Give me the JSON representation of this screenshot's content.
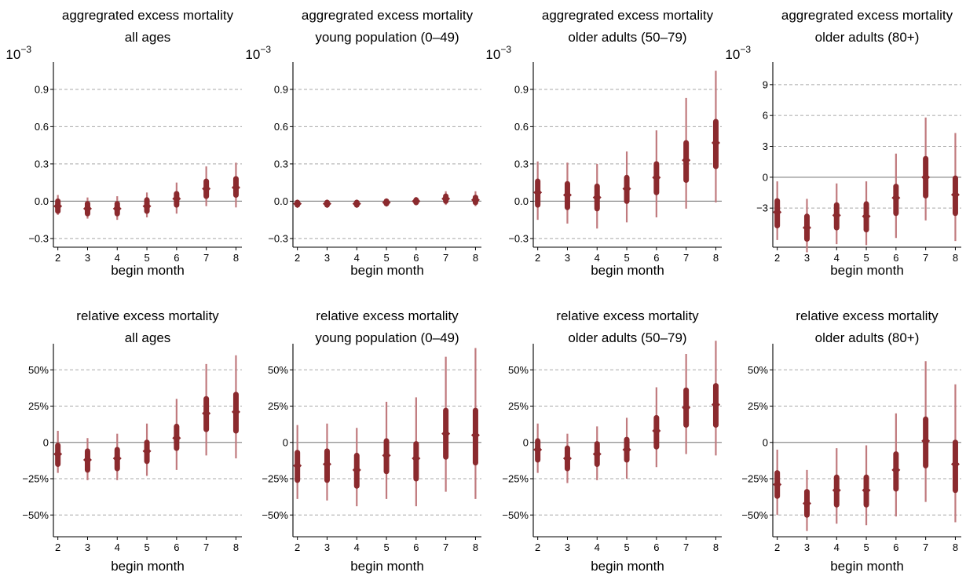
{
  "figure": {
    "xlabel": "begin month",
    "point_color": "#8b2a2e",
    "interval_color": "#c07a7e"
  },
  "chart_data": [
    {
      "type": "scatter",
      "title": [
        "aggregrated excess mortality",
        "all ages"
      ],
      "xlabel": "begin month",
      "ylabel": "",
      "multiplier": "10",
      "multiplier_exp": "−3",
      "x": [
        2,
        3,
        4,
        5,
        6,
        7,
        8
      ],
      "xlim": [
        1.85,
        8.2
      ],
      "ylim": [
        -0.37,
        1.12
      ],
      "yticks": [
        -0.3,
        0.0,
        0.3,
        0.6,
        0.9
      ],
      "yticklabels": [
        "−0.3",
        "0.0",
        "0.3",
        "0.6",
        "0.9"
      ],
      "estimate": [
        -0.04,
        -0.06,
        -0.06,
        -0.04,
        0.02,
        0.1,
        0.11
      ],
      "inner": [
        [
          -0.08,
          0.0
        ],
        [
          -0.1,
          -0.02
        ],
        [
          -0.1,
          -0.02
        ],
        [
          -0.08,
          0.01
        ],
        [
          -0.03,
          0.06
        ],
        [
          0.04,
          0.16
        ],
        [
          0.05,
          0.18
        ]
      ],
      "outer": [
        [
          -0.11,
          0.05
        ],
        [
          -0.14,
          0.03
        ],
        [
          -0.15,
          0.04
        ],
        [
          -0.13,
          0.07
        ],
        [
          -0.1,
          0.15
        ],
        [
          -0.04,
          0.28
        ],
        [
          -0.05,
          0.31
        ]
      ]
    },
    {
      "type": "scatter",
      "title": [
        "aggregrated excess mortality",
        "young population (0–49)"
      ],
      "xlabel": "begin month",
      "ylabel": "",
      "multiplier": "10",
      "multiplier_exp": "−3",
      "x": [
        2,
        3,
        4,
        5,
        6,
        7,
        8
      ],
      "xlim": [
        1.85,
        8.2
      ],
      "ylim": [
        -0.37,
        1.12
      ],
      "yticks": [
        -0.3,
        0.0,
        0.3,
        0.6,
        0.9
      ],
      "yticklabels": [
        "−0.3",
        "0.0",
        "0.3",
        "0.6",
        "0.9"
      ],
      "estimate": [
        -0.02,
        -0.02,
        -0.02,
        -0.01,
        0.0,
        0.02,
        0.01
      ],
      "inner": [
        [
          -0.03,
          -0.01
        ],
        [
          -0.03,
          -0.01
        ],
        [
          -0.03,
          -0.01
        ],
        [
          -0.02,
          0.0
        ],
        [
          -0.01,
          0.01
        ],
        [
          0.0,
          0.04
        ],
        [
          -0.01,
          0.03
        ]
      ],
      "outer": [
        [
          -0.04,
          0.0
        ],
        [
          -0.04,
          0.0
        ],
        [
          -0.04,
          0.0
        ],
        [
          -0.03,
          0.02
        ],
        [
          -0.03,
          0.03
        ],
        [
          -0.03,
          0.08
        ],
        [
          -0.04,
          0.08
        ]
      ]
    },
    {
      "type": "scatter",
      "title": [
        "aggregrated excess mortality",
        "older adults (50–79)"
      ],
      "xlabel": "begin month",
      "ylabel": "",
      "multiplier": "10",
      "multiplier_exp": "−3",
      "x": [
        2,
        3,
        4,
        5,
        6,
        7,
        8
      ],
      "xlim": [
        1.85,
        8.2
      ],
      "ylim": [
        -0.37,
        1.12
      ],
      "yticks": [
        -0.3,
        0.0,
        0.3,
        0.6,
        0.9
      ],
      "yticklabels": [
        "−0.3",
        "0.0",
        "0.3",
        "0.6",
        "0.9"
      ],
      "estimate": [
        0.07,
        0.05,
        0.03,
        0.1,
        0.19,
        0.33,
        0.47
      ],
      "inner": [
        [
          -0.03,
          0.16
        ],
        [
          -0.05,
          0.14
        ],
        [
          -0.06,
          0.12
        ],
        [
          0.0,
          0.19
        ],
        [
          0.07,
          0.3
        ],
        [
          0.17,
          0.47
        ],
        [
          0.28,
          0.64
        ]
      ],
      "outer": [
        [
          -0.15,
          0.32
        ],
        [
          -0.18,
          0.31
        ],
        [
          -0.22,
          0.3
        ],
        [
          -0.17,
          0.4
        ],
        [
          -0.13,
          0.57
        ],
        [
          -0.06,
          0.83
        ],
        [
          -0.01,
          1.05
        ]
      ]
    },
    {
      "type": "scatter",
      "title": [
        "aggregrated excess mortality",
        "older adults (80+)"
      ],
      "xlabel": "begin month",
      "ylabel": "",
      "multiplier": "10",
      "multiplier_exp": "−3",
      "x": [
        2,
        3,
        4,
        5,
        6,
        7,
        8
      ],
      "xlim": [
        1.85,
        8.2
      ],
      "ylim": [
        -6.8,
        11.2
      ],
      "yticks": [
        -3,
        0,
        3,
        6,
        9
      ],
      "yticklabels": [
        "−3",
        "0",
        "3",
        "6",
        "9"
      ],
      "estimate": [
        -3.4,
        -4.9,
        -3.7,
        -3.8,
        -2.0,
        0.0,
        -1.7
      ],
      "inner": [
        [
          -4.7,
          -2.3
        ],
        [
          -6.0,
          -3.8
        ],
        [
          -4.9,
          -2.7
        ],
        [
          -5.1,
          -2.6
        ],
        [
          -3.5,
          -0.9
        ],
        [
          -1.8,
          1.8
        ],
        [
          -3.5,
          -0.1
        ]
      ],
      "outer": [
        [
          -6.1,
          -0.4
        ],
        [
          -7.3,
          -2.1
        ],
        [
          -6.5,
          -0.6
        ],
        [
          -6.6,
          -0.4
        ],
        [
          -5.9,
          2.3
        ],
        [
          -4.2,
          5.8
        ],
        [
          -6.2,
          4.3
        ]
      ]
    },
    {
      "type": "scatter",
      "title": [
        "relative excess mortality",
        "all ages"
      ],
      "xlabel": "begin month",
      "ylabel": "",
      "multiplier": "",
      "multiplier_exp": "",
      "x": [
        2,
        3,
        4,
        5,
        6,
        7,
        8
      ],
      "xlim": [
        1.85,
        8.2
      ],
      "ylim": [
        -65,
        68
      ],
      "yticks": [
        -50,
        -25,
        0,
        25,
        50
      ],
      "yticklabels": [
        "−50%",
        "−25%",
        "0",
        "25%",
        "50%"
      ],
      "estimate": [
        -8,
        -12,
        -11,
        -6,
        3,
        20,
        21
      ],
      "inner": [
        [
          -15,
          -2
        ],
        [
          -19,
          -6
        ],
        [
          -18,
          -5
        ],
        [
          -13,
          0
        ],
        [
          -4,
          11
        ],
        [
          9,
          30
        ],
        [
          8,
          33
        ]
      ],
      "outer": [
        [
          -21,
          8
        ],
        [
          -26,
          3
        ],
        [
          -26,
          6
        ],
        [
          -23,
          13
        ],
        [
          -19,
          30
        ],
        [
          -9,
          54
        ],
        [
          -11,
          60
        ]
      ]
    },
    {
      "type": "scatter",
      "title": [
        "relative excess mortality",
        "young population (0–49)"
      ],
      "xlabel": "begin month",
      "ylabel": "",
      "multiplier": "",
      "multiplier_exp": "",
      "x": [
        2,
        3,
        4,
        5,
        6,
        7,
        8
      ],
      "xlim": [
        1.85,
        8.2
      ],
      "ylim": [
        -65,
        68
      ],
      "yticks": [
        -50,
        -25,
        0,
        25,
        50
      ],
      "yticklabels": [
        "−50%",
        "−25%",
        "0",
        "25%",
        "50%"
      ],
      "estimate": [
        -16,
        -15,
        -19,
        -9,
        -11,
        6,
        5
      ],
      "inner": [
        [
          -26,
          -7
        ],
        [
          -26,
          -6
        ],
        [
          -30,
          -9
        ],
        [
          -20,
          1
        ],
        [
          -25,
          -1
        ],
        [
          -10,
          22
        ],
        [
          -14,
          22
        ]
      ],
      "outer": [
        [
          -39,
          12
        ],
        [
          -40,
          13
        ],
        [
          -44,
          10
        ],
        [
          -39,
          28
        ],
        [
          -44,
          31
        ],
        [
          -34,
          59
        ],
        [
          -39,
          65
        ]
      ]
    },
    {
      "type": "scatter",
      "title": [
        "relative excess mortality",
        "older adults (50–79)"
      ],
      "xlabel": "begin month",
      "ylabel": "",
      "multiplier": "",
      "multiplier_exp": "",
      "x": [
        2,
        3,
        4,
        5,
        6,
        7,
        8
      ],
      "xlim": [
        1.85,
        8.2
      ],
      "ylim": [
        -65,
        68
      ],
      "yticks": [
        -50,
        -25,
        0,
        25,
        50
      ],
      "yticklabels": [
        "−50%",
        "−25%",
        "0",
        "25%",
        "50%"
      ],
      "estimate": [
        -5,
        -11,
        -8,
        -5,
        8,
        24,
        26
      ],
      "inner": [
        [
          -12,
          1
        ],
        [
          -18,
          -4
        ],
        [
          -15,
          -1
        ],
        [
          -12,
          2
        ],
        [
          -3,
          17
        ],
        [
          12,
          36
        ],
        [
          12,
          39
        ]
      ],
      "outer": [
        [
          -21,
          13
        ],
        [
          -28,
          6
        ],
        [
          -26,
          11
        ],
        [
          -25,
          17
        ],
        [
          -17,
          38
        ],
        [
          -8,
          61
        ],
        [
          -9,
          70
        ]
      ]
    },
    {
      "type": "scatter",
      "title": [
        "relative excess mortality",
        "older adults (80+)"
      ],
      "xlabel": "begin month",
      "ylabel": "",
      "multiplier": "",
      "multiplier_exp": "",
      "x": [
        2,
        3,
        4,
        5,
        6,
        7,
        8
      ],
      "xlim": [
        1.85,
        8.2
      ],
      "ylim": [
        -65,
        68
      ],
      "yticks": [
        -50,
        -25,
        0,
        25,
        50
      ],
      "yticklabels": [
        "−50%",
        "−25%",
        "0",
        "25%",
        "50%"
      ],
      "estimate": [
        -29,
        -42,
        -33,
        -33,
        -19,
        1,
        -15
      ],
      "inner": [
        [
          -37,
          -21
        ],
        [
          -50,
          -34
        ],
        [
          -43,
          -24
        ],
        [
          -43,
          -24
        ],
        [
          -32,
          -8
        ],
        [
          -16,
          16
        ],
        [
          -33,
          0
        ]
      ],
      "outer": [
        [
          -50,
          -5
        ],
        [
          -61,
          -19
        ],
        [
          -56,
          -4
        ],
        [
          -57,
          -2
        ],
        [
          -51,
          20
        ],
        [
          -41,
          56
        ],
        [
          -55,
          40
        ]
      ]
    }
  ]
}
